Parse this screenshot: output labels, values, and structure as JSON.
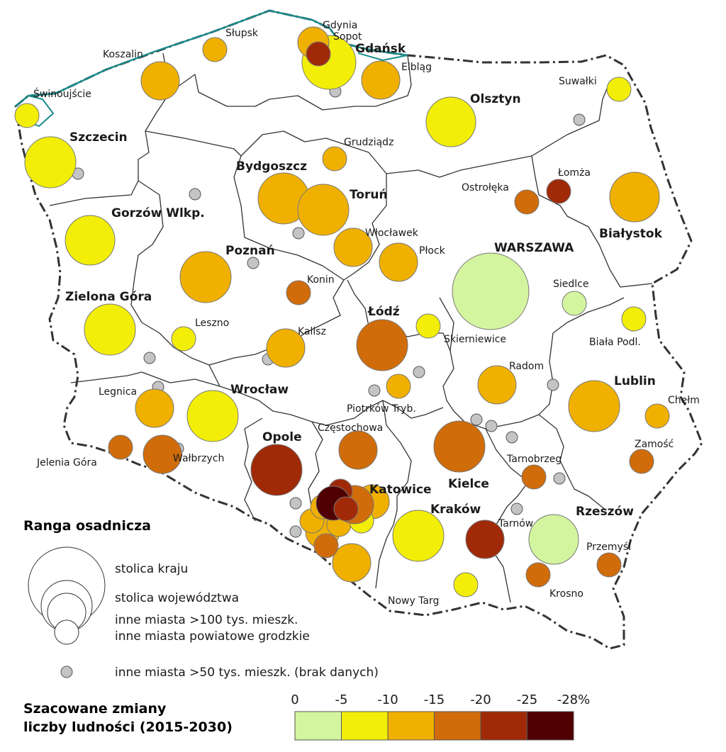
{
  "legend": {
    "rank_title": "Ranga osadnicza",
    "rank_items": [
      "stolica kraju",
      "stolica województwa",
      "inne miasta >100 tys. mieszk.",
      "inne miasta powiatowe grodzkie"
    ],
    "no_data_item": "inne miasta >50 tys. mieszk. (brak danych)",
    "scale_title_line1": "Szacowane zmiany",
    "scale_title_line2": "liczby ludności (2015-2030)",
    "scale_ticks": [
      "0",
      "-5",
      "-10",
      "-15",
      "-20",
      "-25",
      "-28%"
    ],
    "scale_colors": [
      "#d4f5a0",
      "#f2ee08",
      "#f0b000",
      "#d06c0a",
      "#a02a08",
      "#500000"
    ]
  },
  "colors": {
    "border": "#333333",
    "coast": "#1a8a8a",
    "no_data": "#c4c4c4",
    "class_0_5": "#d4f5a0",
    "class_5_10": "#f2ee08",
    "class_10_15": "#f0b000",
    "class_15_20": "#d06c0a",
    "class_20_25": "#a02a08",
    "class_25_28": "#500000"
  },
  "map_labels": {
    "gdynia": "Gdynia",
    "sopot": "Sopot",
    "gdansk": "Gdańsk",
    "slupsk": "Słupsk",
    "koszalin": "Koszalin",
    "elblag": "Elbląg",
    "swinoujscie": "Świnoujście",
    "suwalki": "Suwałki",
    "olsztyn": "Olsztyn",
    "szczecin": "Szczecin",
    "grudziadz": "Grudziądz",
    "bydgoszcz": "Bydgoszcz",
    "lomza": "Łomża",
    "ostroleka": "Ostrołęka",
    "torun": "Toruń",
    "gorzow": "Gorzów Wlkp.",
    "bialystok": "Białystok",
    "wloclawek": "Włocławek",
    "poznan": "Poznań",
    "plock": "Płock",
    "warszawa": "WARSZAWA",
    "konin": "Konin",
    "siedlce": "Siedlce",
    "zielona_gora": "Zielona Góra",
    "lodz": "Łódź",
    "leszno": "Leszno",
    "skierniewice": "Skierniewice",
    "kalisz": "Kalisz",
    "biala_podlaska": "Biała Podl.",
    "radom": "Radom",
    "lublin": "Lublin",
    "legnica": "Legnica",
    "wroclaw": "Wrocław",
    "chelm": "Chełm",
    "piotrkow": "Piotrków Tryb.",
    "czestochowa": "Częstochowa",
    "opole": "Opole",
    "zamosc": "Zamość",
    "jelenia_gora": "Jelenia Góra",
    "walbrzych": "Wałbrzych",
    "tarnobrzeg": "Tarnobrzeg",
    "kielce": "Kielce",
    "katowice": "Katowice",
    "krakow": "Kraków",
    "rzeszow": "Rzeszów",
    "tarnow": "Tarnów",
    "przemysl": "Przemyśl",
    "krosno": "Krosno",
    "nowy_targ": "Nowy Targ"
  },
  "cities": [
    {
      "id": "warszawa",
      "rank": "stolica kraju",
      "change_class": "0..-5"
    },
    {
      "id": "gdansk",
      "rank": "stolica województwa",
      "change_class": "-5..-10"
    },
    {
      "id": "gdynia",
      "rank": "inne miasta >100 tys. mieszk.",
      "change_class": "-10..-15"
    },
    {
      "id": "sopot",
      "rank": "inne miasta powiatowe grodzkie",
      "change_class": "-20..-25"
    },
    {
      "id": "slupsk",
      "rank": "inne miasta powiatowe grodzkie",
      "change_class": "-10..-15"
    },
    {
      "id": "koszalin",
      "rank": "inne miasta >100 tys. mieszk.",
      "change_class": "-10..-15"
    },
    {
      "id": "elblag",
      "rank": "inne miasta >100 tys. mieszk.",
      "change_class": "-10..-15"
    },
    {
      "id": "swinoujscie",
      "rank": "inne miasta powiatowe grodzkie",
      "change_class": "-5..-10"
    },
    {
      "id": "suwalki",
      "rank": "inne miasta powiatowe grodzkie",
      "change_class": "-5..-10"
    },
    {
      "id": "olsztyn",
      "rank": "stolica województwa",
      "change_class": "-5..-10"
    },
    {
      "id": "szczecin",
      "rank": "stolica województwa",
      "change_class": "-5..-10"
    },
    {
      "id": "grudziadz",
      "rank": "inne miasta powiatowe grodzkie",
      "change_class": "-10..-15"
    },
    {
      "id": "bydgoszcz",
      "rank": "stolica województwa",
      "change_class": "-10..-15"
    },
    {
      "id": "torun",
      "rank": "stolica województwa",
      "change_class": "-10..-15"
    },
    {
      "id": "lomza",
      "rank": "inne miasta powiatowe grodzkie",
      "change_class": "-20..-25"
    },
    {
      "id": "ostroleka",
      "rank": "inne miasta powiatowe grodzkie",
      "change_class": "-15..-20"
    },
    {
      "id": "gorzow",
      "rank": "stolica województwa",
      "change_class": "-5..-10"
    },
    {
      "id": "bialystok",
      "rank": "stolica województwa",
      "change_class": "-10..-15"
    },
    {
      "id": "wloclawek",
      "rank": "inne miasta >100 tys. mieszk.",
      "change_class": "-10..-15"
    },
    {
      "id": "poznan",
      "rank": "stolica województwa",
      "change_class": "-10..-15"
    },
    {
      "id": "plock",
      "rank": "inne miasta >100 tys. mieszk.",
      "change_class": "-10..-15"
    },
    {
      "id": "konin",
      "rank": "inne miasta powiatowe grodzkie",
      "change_class": "-15..-20"
    },
    {
      "id": "siedlce",
      "rank": "inne miasta powiatowe grodzkie",
      "change_class": "0..-5"
    },
    {
      "id": "zielona_gora",
      "rank": "stolica województwa",
      "change_class": "-5..-10"
    },
    {
      "id": "lodz",
      "rank": "stolica województwa",
      "change_class": "-15..-20"
    },
    {
      "id": "leszno",
      "rank": "inne miasta powiatowe grodzkie",
      "change_class": "-5..-10"
    },
    {
      "id": "skierniewice",
      "rank": "inne miasta powiatowe grodzkie",
      "change_class": "-5..-10"
    },
    {
      "id": "kalisz",
      "rank": "inne miasta >100 tys. mieszk.",
      "change_class": "-10..-15"
    },
    {
      "id": "biala_podlaska",
      "rank": "inne miasta powiatowe grodzkie",
      "change_class": "-5..-10"
    },
    {
      "id": "radom",
      "rank": "inne miasta >100 tys. mieszk.",
      "change_class": "-10..-15"
    },
    {
      "id": "lublin",
      "rank": "stolica województwa",
      "change_class": "-10..-15"
    },
    {
      "id": "legnica",
      "rank": "inne miasta >100 tys. mieszk.",
      "change_class": "-10..-15"
    },
    {
      "id": "wroclaw",
      "rank": "stolica województwa",
      "change_class": "-5..-10"
    },
    {
      "id": "chelm",
      "rank": "inne miasta powiatowe grodzkie",
      "change_class": "-10..-15"
    },
    {
      "id": "piotrkow",
      "rank": "inne miasta powiatowe grodzkie",
      "change_class": "-10..-15"
    },
    {
      "id": "czestochowa",
      "rank": "inne miasta >100 tys. mieszk.",
      "change_class": "-15..-20"
    },
    {
      "id": "opole",
      "rank": "stolica województwa",
      "change_class": "-20..-25"
    },
    {
      "id": "zamosc",
      "rank": "inne miasta powiatowe grodzkie",
      "change_class": "-15..-20"
    },
    {
      "id": "jelenia_gora",
      "rank": "inne miasta powiatowe grodzkie",
      "change_class": "-15..-20"
    },
    {
      "id": "walbrzych",
      "rank": "inne miasta >100 tys. mieszk.",
      "change_class": "-15..-20"
    },
    {
      "id": "tarnobrzeg",
      "rank": "inne miasta powiatowe grodzkie",
      "change_class": "-15..-20"
    },
    {
      "id": "kielce",
      "rank": "stolica województwa",
      "change_class": "-15..-20"
    },
    {
      "id": "katowice",
      "rank": "stolica województwa",
      "change_class": "-15..-20"
    },
    {
      "id": "krakow",
      "rank": "stolica województwa",
      "change_class": "-5..-10"
    },
    {
      "id": "rzeszow",
      "rank": "stolica województwa",
      "change_class": "0..-5"
    },
    {
      "id": "tarnow",
      "rank": "inne miasta >100 tys. mieszk.",
      "change_class": "-20..-25"
    },
    {
      "id": "przemysl",
      "rank": "inne miasta powiatowe grodzkie",
      "change_class": "-15..-20"
    },
    {
      "id": "krosno",
      "rank": "inne miasta powiatowe grodzkie",
      "change_class": "-15..-20"
    },
    {
      "id": "nowy_targ",
      "rank": "inne miasta powiatowe grodzkie",
      "change_class": "-5..-10"
    }
  ]
}
